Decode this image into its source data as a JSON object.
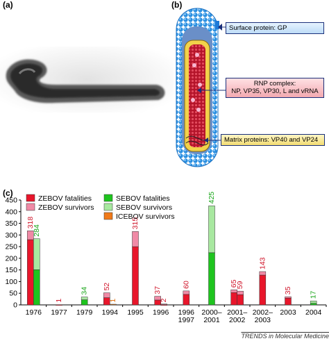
{
  "panels": {
    "a": "(a)",
    "b": "(b)",
    "c": "(c)"
  },
  "callouts": {
    "surface": "Surface protein: GP",
    "rnp_line1": "RNP complex:",
    "rnp_line2": "NP, VP35, VP30, L and vRNA",
    "matrix": "Matrix proteins: VP40 and VP24"
  },
  "colors": {
    "zebov_fatal": "#e8162b",
    "zebov_surv": "#f08aa6",
    "sebov_fatal": "#1ec41e",
    "sebov_surv": "#a8e8a0",
    "icebov_surv": "#f07a1a",
    "virion_blue": "#2a8fe0"
  },
  "footer": "TRENDS in Molecular Medicine",
  "chart_data": {
    "type": "bar",
    "stacked": true,
    "categories": [
      "1976",
      "1977",
      "1979",
      "1994",
      "1995",
      "1996",
      "1996–1997",
      "2000–2001",
      "2001–2002",
      "2002–2003",
      "2003",
      "2004"
    ],
    "xlabels": [
      [
        "1976"
      ],
      [
        "1977"
      ],
      [
        "1979"
      ],
      [
        "1994"
      ],
      [
        "1995"
      ],
      [
        "1996"
      ],
      [
        "1996",
        "1997"
      ],
      [
        "2000–",
        "2001"
      ],
      [
        "2001–",
        "2002"
      ],
      [
        "2002–",
        "2003"
      ],
      [
        "2003"
      ],
      [
        "2004"
      ]
    ],
    "ylim": [
      0,
      450
    ],
    "yticks": [
      0,
      50,
      100,
      150,
      200,
      250,
      300,
      350,
      400,
      450
    ],
    "legend": [
      "ZEBOV fatalities",
      "ZEBOV survivors",
      "SEBOV fatalities",
      "SEBOV survivors",
      "ICEBOV survivors"
    ],
    "bars": [
      {
        "cat": 0,
        "slot": 0,
        "species": "zebov",
        "fatal": 280,
        "surv": 38,
        "label": "318"
      },
      {
        "cat": 0,
        "slot": 1,
        "species": "sebov",
        "fatal": 151,
        "surv": 133,
        "label": "284"
      },
      {
        "cat": 1,
        "slot": 0,
        "species": "zebov",
        "fatal": 1,
        "surv": 0,
        "label": "1"
      },
      {
        "cat": 2,
        "slot": 0,
        "species": "sebov",
        "fatal": 22,
        "surv": 12,
        "label": "34"
      },
      {
        "cat": 3,
        "slot": 0,
        "species": "zebov",
        "fatal": 31,
        "surv": 21,
        "label": "52"
      },
      {
        "cat": 3,
        "slot": 1,
        "species": "icebov",
        "fatal": 0,
        "surv": 1,
        "label": "1"
      },
      {
        "cat": 4,
        "slot": 0,
        "species": "zebov",
        "fatal": 250,
        "surv": 65,
        "label": "315"
      },
      {
        "cat": 5,
        "slot": 0,
        "species": "zebov",
        "fatal": 21,
        "surv": 16,
        "label": "37"
      },
      {
        "cat": 5,
        "slot": 1,
        "species": "zebov",
        "fatal": 1,
        "surv": 1,
        "label": "2"
      },
      {
        "cat": 6,
        "slot": 0,
        "species": "zebov",
        "fatal": 45,
        "surv": 15,
        "label": "60"
      },
      {
        "cat": 7,
        "slot": 0,
        "species": "sebov",
        "fatal": 224,
        "surv": 201,
        "label": "425"
      },
      {
        "cat": 8,
        "slot": 0,
        "species": "zebov",
        "fatal": 53,
        "surv": 12,
        "label": "65"
      },
      {
        "cat": 8,
        "slot": 1,
        "species": "zebov",
        "fatal": 44,
        "surv": 15,
        "label": "59"
      },
      {
        "cat": 9,
        "slot": 0,
        "species": "zebov",
        "fatal": 128,
        "surv": 15,
        "label": "143"
      },
      {
        "cat": 10,
        "slot": 0,
        "species": "zebov",
        "fatal": 29,
        "surv": 6,
        "label": "35"
      },
      {
        "cat": 11,
        "slot": 0,
        "species": "sebov",
        "fatal": 7,
        "surv": 10,
        "label": "17"
      }
    ]
  }
}
